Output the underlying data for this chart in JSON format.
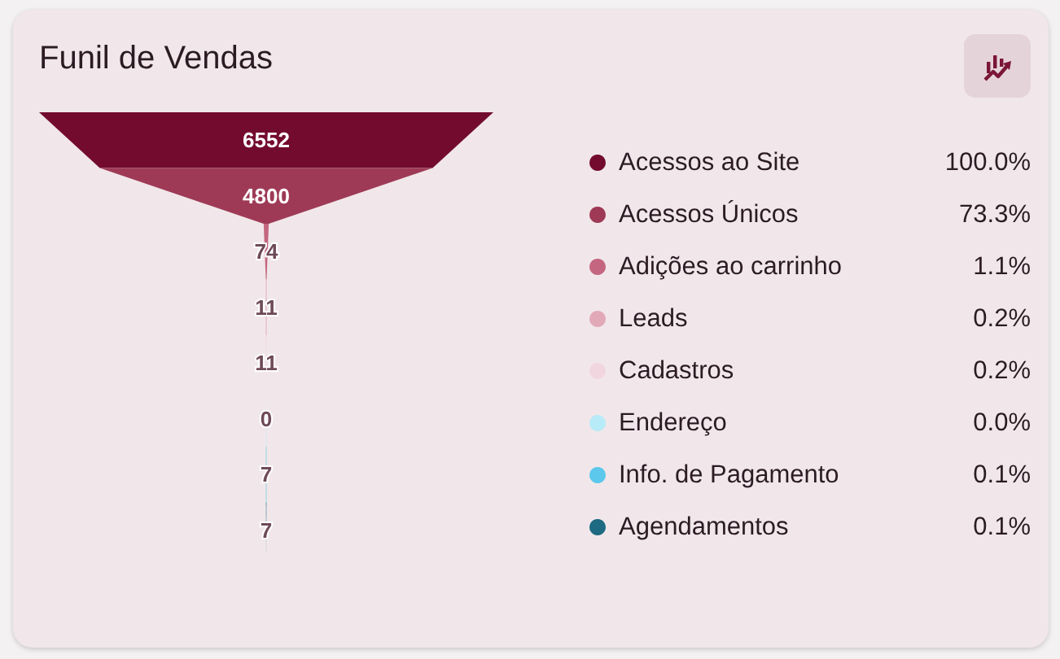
{
  "chart_data": {
    "type": "other",
    "title": "Funil de Vendas",
    "categories": [
      "Acessos ao Site",
      "Acessos Únicos",
      "Adições ao carrinho",
      "Leads",
      "Cadastros",
      "Endereço",
      "Info. de Pagamento",
      "Agendamentos"
    ],
    "values": [
      6552,
      4800,
      74,
      11,
      11,
      0,
      7,
      7
    ],
    "colors": [
      "#730b2e",
      "#9e3a56",
      "#c4667f",
      "#e2a9b9",
      "#f2d6df",
      "#b8ebf8",
      "#5bc8ec",
      "#1d6a82"
    ],
    "data_labels": true,
    "annotations": [
      "100.0%",
      "73.3%",
      "1.1%",
      "0.2%",
      "0.2%",
      "0.0%",
      "0.1%",
      "0.1%"
    ]
  }
}
